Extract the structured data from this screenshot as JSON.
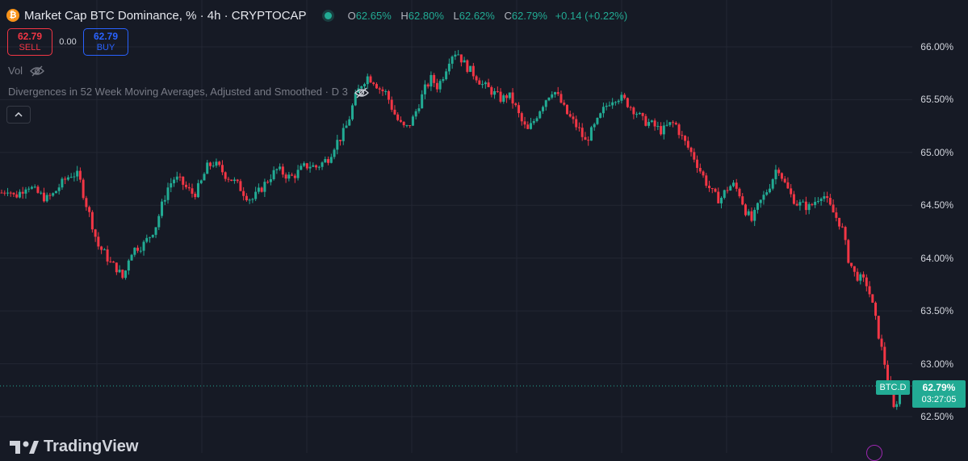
{
  "header": {
    "symbol_icon": "bitcoin-icon",
    "title": "Market Cap BTC Dominance, % · 4h · CRYPTOCAP",
    "ohlc": {
      "o_label": "O",
      "o": "62.65%",
      "h_label": "H",
      "h": "62.80%",
      "l_label": "L",
      "l": "62.62%",
      "c_label": "C",
      "c": "62.79%",
      "change": "+0.14 (+0.22%)"
    }
  },
  "trade": {
    "sell_price": "62.79",
    "sell_label": "SELL",
    "spread": "0.00",
    "buy_price": "62.79",
    "buy_label": "BUY"
  },
  "indicators": {
    "vol_label": "Vol",
    "hidden_indicator": "Divergences in 52 Week Moving Averages, Adjusted and Smoothed · D 3"
  },
  "price_scale": [
    "66.00%",
    "65.50%",
    "65.00%",
    "64.50%",
    "64.00%",
    "63.50%",
    "63.00%",
    "62.50%"
  ],
  "last_price": {
    "symbol": "BTC.D",
    "price": "62.79%",
    "countdown": "03:27:05"
  },
  "brand": "TradingView",
  "colors": {
    "up": "#22ab94",
    "down": "#f23645",
    "background": "#161a25",
    "grid": "#232733"
  },
  "chart_data": {
    "type": "candlestick",
    "y_unit": "%",
    "ylim": [
      62.35,
      66.15
    ],
    "grid": true,
    "close_path": [
      64.62,
      64.66,
      64.58,
      64.63,
      64.7,
      64.64,
      64.6,
      64.56,
      64.6,
      64.68,
      64.75,
      64.8,
      64.78,
      64.55,
      64.35,
      64.12,
      64.05,
      63.95,
      63.9,
      63.8,
      64.05,
      64.1,
      64.12,
      64.2,
      64.3,
      64.5,
      64.68,
      64.76,
      64.72,
      64.65,
      64.6,
      64.7,
      64.86,
      64.9,
      64.85,
      64.78,
      64.74,
      64.68,
      64.6,
      64.55,
      64.62,
      64.7,
      64.78,
      64.84,
      64.8,
      64.76,
      64.8,
      64.86,
      64.88,
      64.86,
      64.9,
      64.95,
      65.08,
      65.15,
      65.28,
      65.5,
      65.64,
      65.72,
      65.68,
      65.6,
      65.56,
      65.4,
      65.28,
      65.22,
      65.3,
      65.45,
      65.6,
      65.7,
      65.62,
      65.75,
      65.92,
      65.96,
      65.85,
      65.78,
      65.72,
      65.64,
      65.6,
      65.55,
      65.5,
      65.55,
      65.45,
      65.3,
      65.2,
      65.3,
      65.42,
      65.52,
      65.6,
      65.5,
      65.38,
      65.3,
      65.22,
      65.1,
      65.2,
      65.3,
      65.42,
      65.5,
      65.53,
      65.5,
      65.44,
      65.38,
      65.3,
      65.28,
      65.24,
      65.2,
      65.26,
      65.28,
      65.15,
      65.05,
      64.95,
      64.82,
      64.7,
      64.6,
      64.55,
      64.65,
      64.7,
      64.62,
      64.45,
      64.35,
      64.5,
      64.6,
      64.72,
      64.88,
      64.72,
      64.6,
      64.52,
      64.5,
      64.48,
      64.55,
      64.62,
      64.5,
      64.4,
      64.3,
      64.0,
      63.85,
      63.8,
      63.75,
      63.5,
      63.2,
      62.92,
      62.55,
      62.72,
      62.79
    ],
    "last": 62.79
  }
}
